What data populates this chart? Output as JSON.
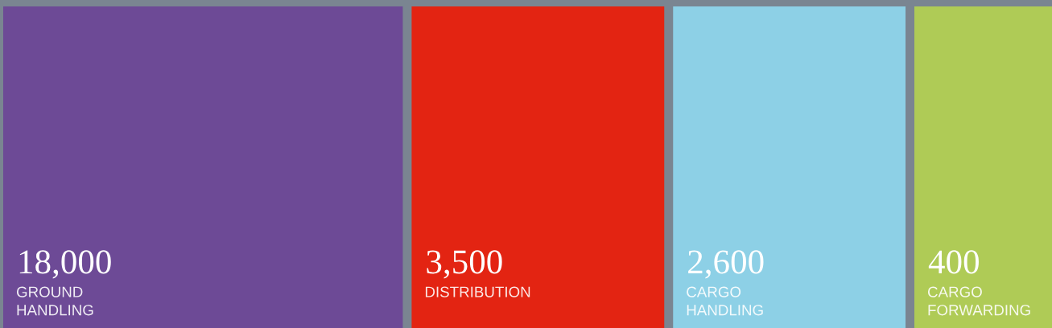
{
  "chart_data": {
    "type": "other",
    "categories": [
      "GROUND\nHANDLING",
      "DISTRIBUTION",
      "CARGO\nHANDLING",
      "CARGO\nFORWARDING"
    ],
    "values": [
      18000,
      3500,
      2600,
      400
    ],
    "value_labels": [
      "18,000",
      "3,500",
      "2,600",
      "400"
    ],
    "colors": [
      "#6d4a96",
      "#e32412",
      "#8dd0e6",
      "#afcb56"
    ]
  }
}
